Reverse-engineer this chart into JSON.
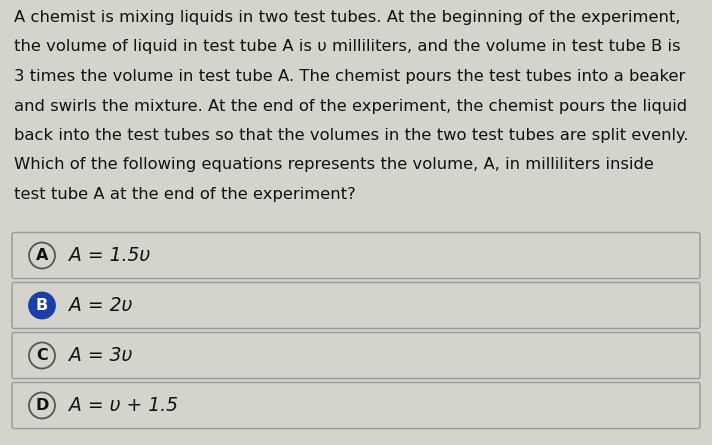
{
  "background_color": "#d4d4cc",
  "question_text": [
    "A chemist is mixing liquids in two test tubes. At the beginning of the experiment,",
    "the volume of liquid in test tube A is υ milliliters, and the volume in test tube B is",
    "3 times the volume in test tube A. The chemist pours the test tubes into a beaker",
    "and swirls the mixture. At the end of the experiment, the chemist pours the liquid",
    "back into the test tubes so that the volumes in the two test tubes are split evenly.",
    "Which of the following equations represents the volume, A, in milliliters inside",
    "test tube A at the end of the experiment?"
  ],
  "options": [
    {
      "label": "A",
      "text": "A = 1.5υ",
      "filled": false
    },
    {
      "label": "B",
      "text": "A = 2υ",
      "filled": true
    },
    {
      "label": "C",
      "text": "A = 3υ",
      "filled": false
    },
    {
      "label": "D",
      "text": "A = υ + 1.5",
      "filled": false
    }
  ],
  "option_box_facecolor": "#d4d4cc",
  "option_box_edgecolor": "#999999",
  "circle_unfilled_face": "#d4d4cc",
  "circle_unfilled_edge": "#555555",
  "circle_filled_face": "#1a3faa",
  "circle_filled_edge": "#1a3faa",
  "text_color": "#111111",
  "label_color_unfilled": "#111111",
  "label_color_filled": "#ffffff",
  "font_size_question": 11.8,
  "font_size_option": 13.5,
  "font_size_label": 11.5,
  "fig_width": 7.12,
  "fig_height": 4.45,
  "dpi": 100
}
